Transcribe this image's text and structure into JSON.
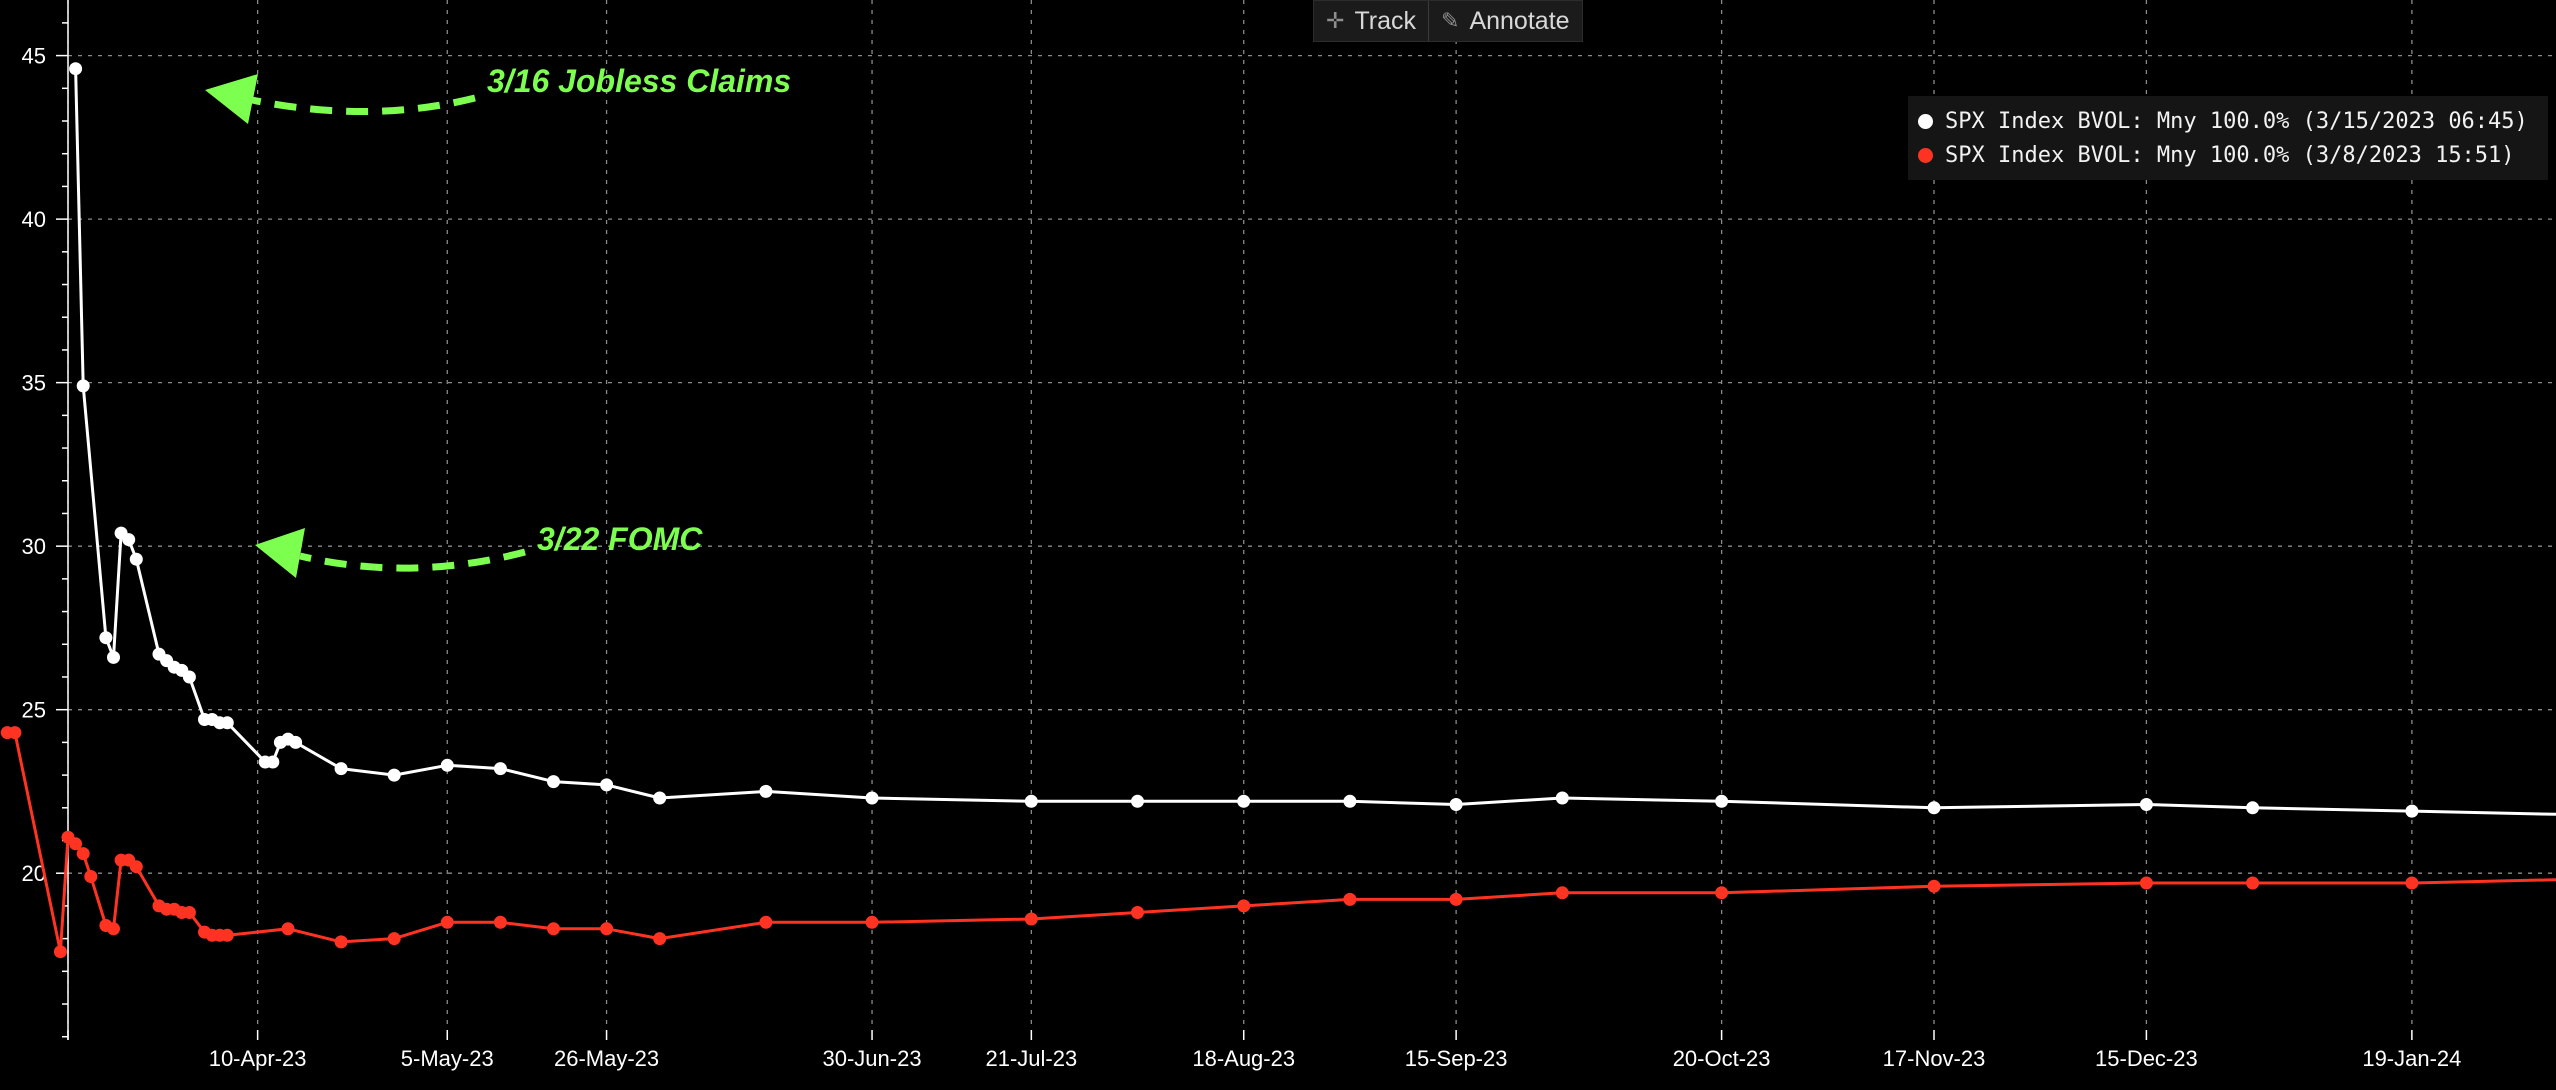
{
  "toolbar": {
    "track_label": "Track",
    "annotate_label": "Annotate"
  },
  "legend": [
    {
      "label": "SPX Index BVOL: Mny 100.0% (3/15/2023 06:45)",
      "color": "#ffffff"
    },
    {
      "label": "SPX Index BVOL: Mny 100.0% (3/8/2023 15:51)",
      "color": "#ff3322"
    }
  ],
  "annotations": [
    {
      "text": "3/16 Jobless Claims",
      "color": "#7dff4f"
    },
    {
      "text": "3/22 FOMC",
      "color": "#7dff4f"
    }
  ],
  "chart_data": {
    "type": "line",
    "title": "",
    "xlabel": "",
    "ylabel": "",
    "ylim": [
      14.9,
      46.7
    ],
    "xlim": [
      "2023-03-16",
      "2024-02-07"
    ],
    "grid": true,
    "legend_position": "top-right",
    "x_ticks": [
      "10-Apr-23",
      "5-May-23",
      "26-May-23",
      "30-Jun-23",
      "21-Jul-23",
      "18-Aug-23",
      "15-Sep-23",
      "20-Oct-23",
      "17-Nov-23",
      "15-Dec-23",
      "19-Jan-24"
    ],
    "y_ticks": [
      20,
      25,
      30,
      35,
      40,
      45
    ],
    "series": [
      {
        "name": "SPX Index BVOL: Mny 100.0% (3/15/2023 06:45)",
        "color": "#ffffff",
        "x": [
          "2023-03-17",
          "2023-03-18",
          "2023-03-21",
          "2023-03-22",
          "2023-03-23",
          "2023-03-24",
          "2023-03-25",
          "2023-03-28",
          "2023-03-29",
          "2023-03-30",
          "2023-03-31",
          "2023-04-01",
          "2023-04-03",
          "2023-04-04",
          "2023-04-05",
          "2023-04-06",
          "2023-04-11",
          "2023-04-12",
          "2023-04-13",
          "2023-04-14",
          "2023-04-15",
          "2023-04-21",
          "2023-04-28",
          "2023-05-05",
          "2023-05-12",
          "2023-05-19",
          "2023-05-26",
          "2023-06-02",
          "2023-06-16",
          "2023-06-30",
          "2023-07-21",
          "2023-08-04",
          "2023-08-18",
          "2023-09-01",
          "2023-09-15",
          "2023-09-29",
          "2023-10-20",
          "2023-11-17",
          "2023-12-15",
          "2023-12-29",
          "2024-01-19",
          "2024-02-07"
        ],
        "values": [
          44.6,
          34.9,
          27.2,
          26.6,
          30.4,
          30.2,
          29.6,
          26.7,
          26.5,
          26.3,
          26.2,
          26.0,
          24.7,
          24.7,
          24.6,
          24.6,
          23.4,
          23.4,
          24.0,
          24.1,
          24.0,
          23.2,
          23.0,
          23.3,
          23.2,
          22.8,
          22.7,
          22.3,
          22.5,
          22.3,
          22.2,
          22.2,
          22.2,
          22.2,
          22.1,
          22.3,
          22.2,
          22.0,
          22.1,
          22.0,
          21.9,
          21.8
        ]
      },
      {
        "name": "SPX Index BVOL: Mny 100.0% (3/8/2023 15:51)",
        "color": "#ff3322",
        "x": [
          "2023-03-08",
          "2023-03-09",
          "2023-03-15",
          "2023-03-16",
          "2023-03-17",
          "2023-03-18",
          "2023-03-19",
          "2023-03-21",
          "2023-03-22",
          "2023-03-23",
          "2023-03-24",
          "2023-03-25",
          "2023-03-28",
          "2023-03-29",
          "2023-03-30",
          "2023-03-31",
          "2023-04-01",
          "2023-04-03",
          "2023-04-04",
          "2023-04-05",
          "2023-04-06",
          "2023-04-14",
          "2023-04-21",
          "2023-04-28",
          "2023-05-05",
          "2023-05-12",
          "2023-05-19",
          "2023-05-26",
          "2023-06-02",
          "2023-06-16",
          "2023-06-30",
          "2023-07-21",
          "2023-08-04",
          "2023-08-18",
          "2023-09-01",
          "2023-09-15",
          "2023-09-29",
          "2023-10-20",
          "2023-11-17",
          "2023-12-15",
          "2023-12-29",
          "2024-01-19",
          "2024-02-07"
        ],
        "values": [
          24.3,
          24.3,
          17.6,
          21.1,
          20.9,
          20.6,
          19.9,
          18.4,
          18.3,
          20.4,
          20.4,
          20.2,
          19.0,
          18.9,
          18.9,
          18.8,
          18.8,
          18.2,
          18.1,
          18.1,
          18.1,
          18.3,
          17.9,
          18.0,
          18.5,
          18.5,
          18.3,
          18.3,
          18.0,
          18.5,
          18.5,
          18.6,
          18.8,
          19.0,
          19.2,
          19.2,
          19.4,
          19.4,
          19.6,
          19.7,
          19.7,
          19.7,
          19.8
        ]
      }
    ]
  }
}
